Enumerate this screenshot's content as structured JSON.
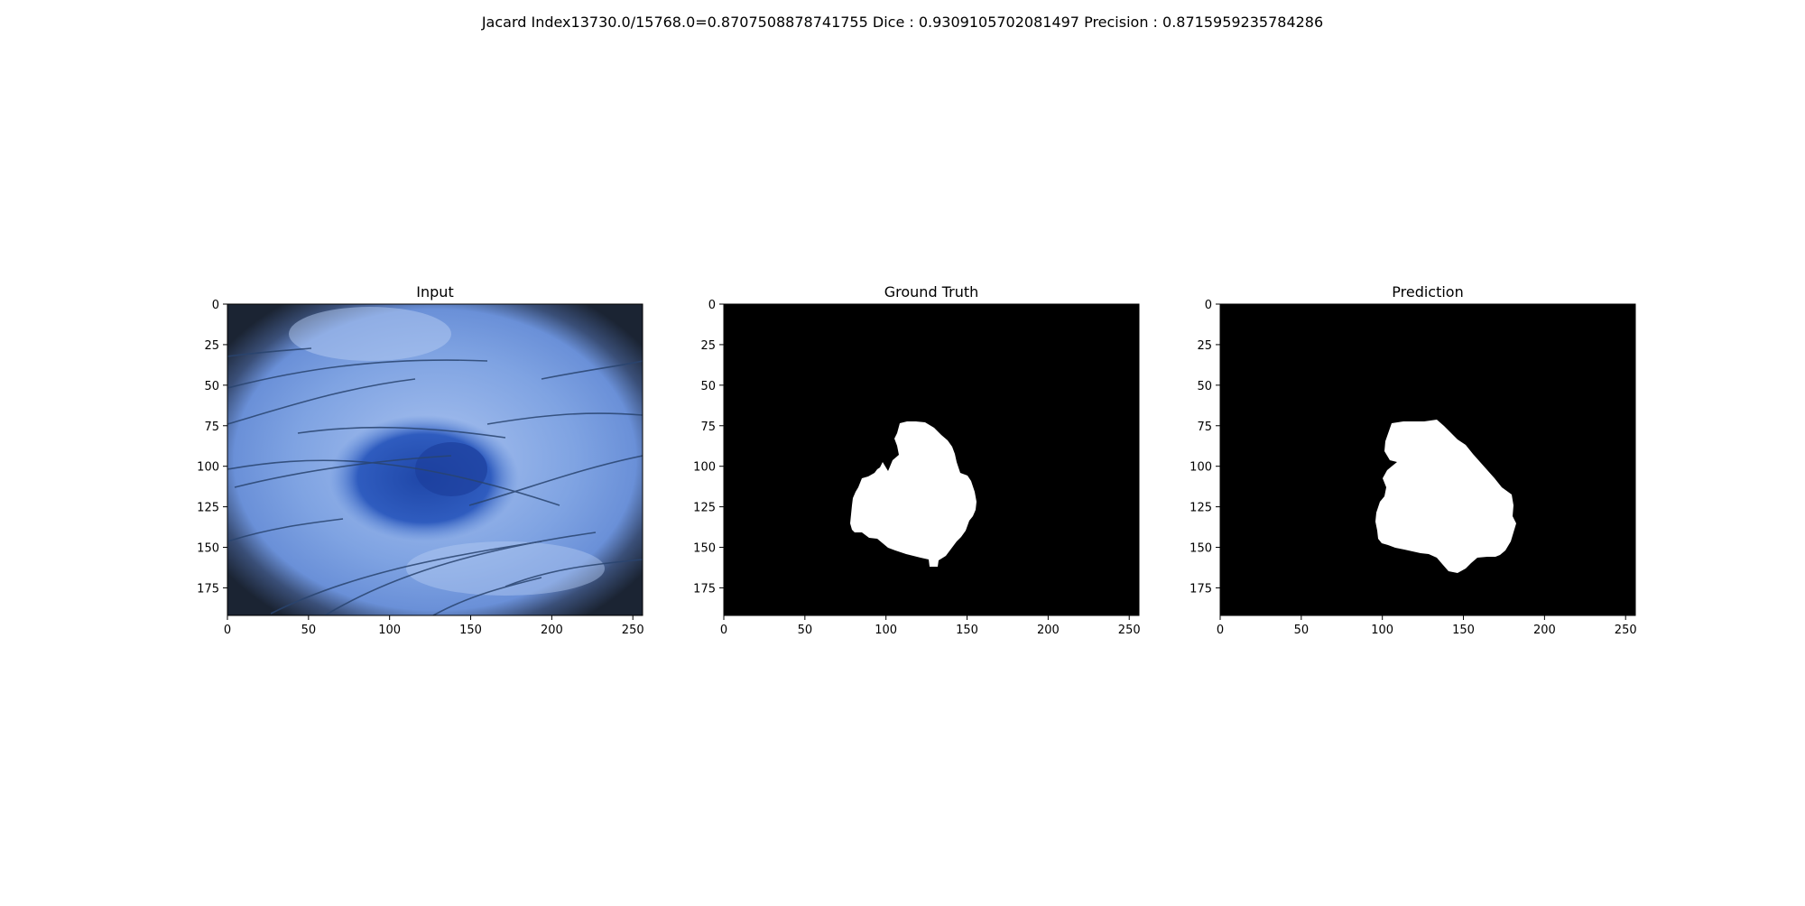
{
  "figure": {
    "suptitle": "Jacard Index13730.0/15768.0=0.8707508878741755 Dice : 0.9309105702081497 Precision : 0.8715959235784286"
  },
  "panels": [
    {
      "title": "Input",
      "xticks": [
        "0",
        "50",
        "100",
        "150",
        "200",
        "250"
      ],
      "yticks": [
        "0",
        "25",
        "50",
        "75",
        "100",
        "125",
        "150",
        "175"
      ]
    },
    {
      "title": "Ground Truth",
      "xticks": [
        "0",
        "50",
        "100",
        "150",
        "200",
        "250"
      ],
      "yticks": [
        "0",
        "25",
        "50",
        "75",
        "100",
        "125",
        "150",
        "175"
      ]
    },
    {
      "title": "Prediction",
      "xticks": [
        "0",
        "50",
        "100",
        "150",
        "200",
        "250"
      ],
      "yticks": [
        "0",
        "25",
        "50",
        "75",
        "100",
        "125",
        "150",
        "175"
      ]
    }
  ],
  "image_content": {
    "input": "dermoscopy image of a blue-toned skin lesion with hairs",
    "ground_truth": "binary mask, white lesion region on black background",
    "prediction": "binary mask, white lesion region on black background"
  },
  "colors": {
    "skin_light": "#8fb0e6",
    "skin_mid": "#5f87d6",
    "lesion": "#2a54b4",
    "vignette": "#1b2433",
    "mask_bg": "#000000",
    "mask_fg": "#ffffff"
  }
}
